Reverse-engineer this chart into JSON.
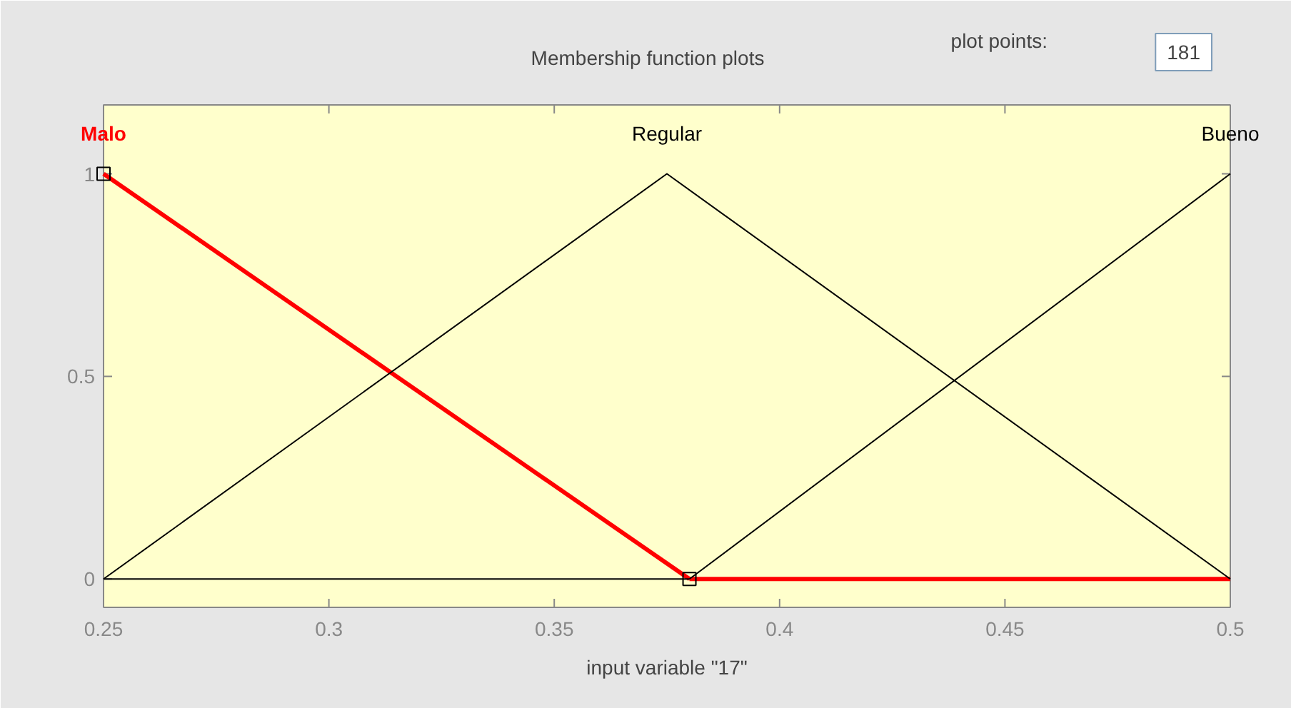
{
  "chart_data": {
    "type": "line",
    "title": "Membership function plots",
    "xlabel": "input variable \"17\"",
    "annotations": [
      "plot points:",
      "181"
    ],
    "xlim": [
      0.25,
      0.5
    ],
    "ylim": [
      -0.07,
      1.17
    ],
    "xticks": [
      0.25,
      0.3,
      0.35,
      0.4,
      0.45,
      0.5
    ],
    "yticks": [
      0,
      0.5,
      1
    ],
    "grid": false,
    "series": [
      {
        "name": "Malo",
        "color": "#ff0000",
        "x": [
          0.25,
          0.38
        ],
        "values": [
          1,
          0
        ],
        "marker": "square"
      },
      {
        "color": "#ff0000",
        "x": [
          0.38,
          0.5
        ],
        "values": [
          0,
          0
        ]
      },
      {
        "name": "Regular",
        "color": "#000000",
        "x": [
          0.25,
          0.375,
          0.5
        ],
        "values": [
          0,
          1,
          0
        ]
      },
      {
        "name": "Bueno",
        "color": "#000000",
        "x": [
          0.25,
          0.38,
          0.5
        ],
        "values": [
          0,
          0,
          1
        ]
      }
    ]
  }
}
